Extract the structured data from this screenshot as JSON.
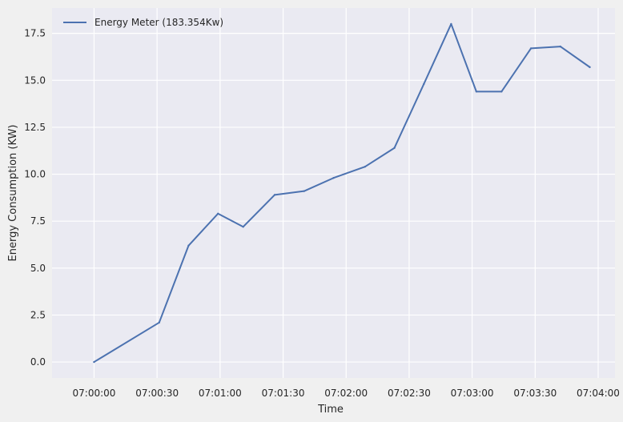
{
  "chart_data": {
    "type": "line",
    "title": "",
    "xlabel": "Time",
    "ylabel": "Energy Consumption (KW)",
    "legend_position": "top-left",
    "grid": true,
    "colors": {
      "background": "#eaeaf2",
      "figure": "#f0f0f0",
      "grid": "#ffffff",
      "line": "#4c72b0"
    },
    "xlim": [
      "06:59:40",
      "07:04:08"
    ],
    "ylim": [
      -0.85,
      18.85
    ],
    "x_ticks": [
      "07:00:00",
      "07:00:30",
      "07:01:00",
      "07:01:30",
      "07:02:00",
      "07:02:30",
      "07:03:00",
      "07:03:30",
      "07:04:00"
    ],
    "y_ticks": [
      0.0,
      2.5,
      5.0,
      7.5,
      10.0,
      12.5,
      15.0,
      17.5
    ],
    "y_tick_labels": [
      "0.0",
      "2.5",
      "5.0",
      "7.5",
      "10.0",
      "12.5",
      "15.0",
      "17.5"
    ],
    "series": [
      {
        "name": "Energy Meter (183.354Kw)",
        "x": [
          "07:00:00",
          "07:00:31",
          "07:00:45",
          "07:00:59",
          "07:01:11",
          "07:01:26",
          "07:01:40",
          "07:01:54",
          "07:02:09",
          "07:02:23",
          "07:02:37",
          "07:02:50",
          "07:03:02",
          "07:03:14",
          "07:03:28",
          "07:03:42",
          "07:03:56"
        ],
        "values": [
          0.0,
          2.1,
          6.2,
          7.9,
          7.2,
          8.9,
          9.1,
          9.8,
          10.4,
          11.4,
          14.8,
          18.0,
          14.4,
          14.4,
          16.7,
          16.8,
          15.7
        ]
      }
    ]
  }
}
